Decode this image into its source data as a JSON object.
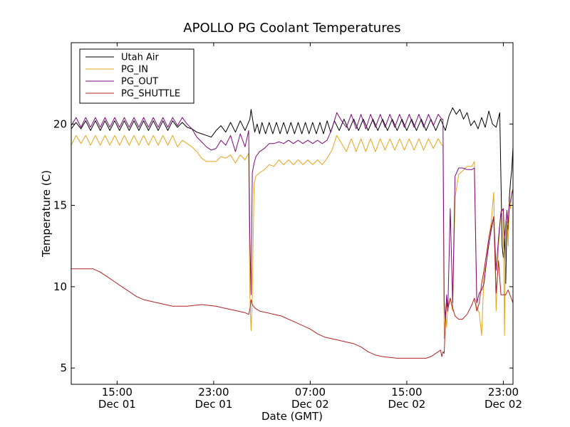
{
  "chart_data": {
    "type": "line",
    "title": "APOLLO PG Coolant Temperatures",
    "xlabel": "Date (GMT)",
    "ylabel": "Temperature (C)",
    "xlim": [
      11.2,
      47.8
    ],
    "ylim": [
      4,
      25
    ],
    "grid": false,
    "legend_position": "top-left",
    "x_unit": "hours since Dec 01 00:00 GMT",
    "x_ticks": [
      {
        "value": 15,
        "time": "15:00",
        "date": "Dec 01"
      },
      {
        "value": 23,
        "time": "23:00",
        "date": "Dec 01"
      },
      {
        "value": 31,
        "time": "07:00",
        "date": "Dec 02"
      },
      {
        "value": 39,
        "time": "15:00",
        "date": "Dec 02"
      },
      {
        "value": 47,
        "time": "23:00",
        "date": "Dec 02"
      }
    ],
    "y_ticks": [
      5,
      10,
      15,
      20
    ],
    "series": [
      {
        "name": "Utah Air",
        "color": "#000000",
        "x": [
          11.2,
          11.6,
          12.0,
          12.4,
          12.8,
          13.2,
          13.6,
          14.0,
          14.4,
          14.8,
          15.2,
          15.6,
          16.0,
          16.4,
          16.8,
          17.2,
          17.6,
          18.0,
          18.4,
          18.8,
          19.2,
          19.6,
          20.0,
          20.4,
          20.8,
          21.2,
          21.6,
          22.0,
          22.4,
          22.8,
          23.2,
          23.6,
          24.0,
          24.4,
          24.8,
          25.2,
          25.6,
          26.0,
          26.1,
          26.2,
          26.4,
          26.6,
          26.8,
          27.0,
          27.3,
          27.6,
          27.9,
          28.2,
          28.5,
          28.8,
          29.1,
          29.4,
          29.7,
          30.0,
          30.3,
          30.6,
          30.9,
          31.2,
          31.5,
          31.8,
          32.1,
          32.4,
          32.7,
          33.0,
          33.4,
          33.8,
          34.2,
          34.6,
          35.0,
          35.4,
          35.8,
          36.2,
          36.6,
          37.0,
          37.4,
          37.8,
          38.2,
          38.6,
          39.0,
          39.4,
          39.8,
          40.2,
          40.6,
          41.0,
          41.4,
          41.8,
          42.2,
          42.5,
          42.8,
          43.1,
          43.4,
          43.7,
          44.0,
          44.3,
          44.6,
          44.9,
          45.2,
          45.5,
          45.8,
          46.1,
          46.4,
          46.7,
          46.9,
          47.0,
          47.1,
          47.2,
          47.3,
          47.4,
          47.5,
          47.6,
          47.7,
          47.8
        ],
        "values": [
          19.7,
          20.1,
          19.7,
          20.2,
          19.6,
          20.2,
          19.6,
          20.2,
          19.6,
          20.2,
          19.6,
          20.2,
          19.6,
          20.2,
          19.6,
          20.2,
          19.6,
          20.2,
          19.6,
          20.2,
          19.6,
          20.2,
          19.8,
          20.1,
          19.8,
          19.7,
          19.5,
          19.4,
          19.3,
          19.2,
          19.6,
          19.9,
          19.5,
          20.1,
          19.5,
          20.2,
          19.6,
          20.3,
          20.9,
          20.4,
          19.5,
          20.0,
          19.4,
          20.1,
          19.4,
          20.1,
          19.4,
          20.1,
          19.4,
          20.1,
          19.4,
          20.1,
          19.4,
          20.1,
          19.4,
          20.1,
          19.4,
          20.1,
          19.4,
          20.1,
          19.4,
          20.2,
          19.5,
          20.2,
          19.6,
          20.3,
          19.6,
          20.3,
          19.6,
          20.3,
          19.6,
          20.3,
          19.6,
          20.3,
          19.6,
          20.3,
          19.6,
          20.3,
          19.6,
          20.3,
          19.6,
          20.3,
          19.6,
          20.3,
          19.6,
          20.3,
          19.6,
          20.5,
          21.0,
          20.6,
          20.9,
          20.3,
          20.7,
          19.9,
          20.2,
          19.7,
          20.4,
          19.8,
          20.8,
          20.0,
          19.8,
          20.7,
          12.5,
          11.8,
          13.0,
          10.2,
          14.0,
          13.5,
          15.5,
          16.5,
          17.2,
          18.6
        ]
      },
      {
        "name": "PG_IN",
        "color": "#e6a519",
        "x": [
          11.2,
          11.6,
          12.0,
          12.4,
          12.8,
          13.2,
          13.6,
          14.0,
          14.4,
          14.8,
          15.2,
          15.6,
          16.0,
          16.4,
          16.8,
          17.2,
          17.6,
          18.0,
          18.4,
          18.8,
          19.2,
          19.6,
          20.0,
          20.4,
          20.8,
          21.2,
          21.6,
          22.0,
          22.4,
          22.8,
          23.2,
          23.6,
          24.0,
          24.4,
          24.8,
          25.2,
          25.6,
          25.9,
          26.0,
          26.1,
          26.2,
          26.35,
          26.5,
          26.8,
          27.2,
          27.6,
          28.0,
          28.4,
          28.8,
          29.2,
          29.6,
          30.0,
          30.4,
          30.8,
          31.2,
          31.6,
          32.0,
          32.4,
          32.8,
          33.2,
          33.6,
          34.0,
          34.4,
          34.8,
          35.2,
          35.6,
          36.0,
          36.4,
          36.8,
          37.2,
          37.6,
          38.0,
          38.4,
          38.8,
          39.2,
          39.6,
          40.0,
          40.4,
          40.8,
          41.2,
          41.6,
          41.9,
          42.0,
          42.1,
          42.2,
          42.3,
          42.4,
          42.6,
          42.8,
          43.0,
          43.3,
          43.6,
          44.0,
          44.4,
          44.6,
          44.8,
          45.0,
          45.2,
          45.4,
          45.6,
          45.8,
          46.0,
          46.2,
          46.4,
          46.6,
          46.8,
          47.0,
          47.1,
          47.2,
          47.3,
          47.4,
          47.5,
          47.6,
          47.7,
          47.8
        ],
        "values": [
          18.7,
          19.3,
          18.8,
          19.3,
          18.7,
          19.3,
          18.7,
          19.3,
          18.7,
          19.3,
          18.7,
          19.3,
          18.7,
          19.3,
          18.7,
          19.3,
          18.7,
          19.3,
          18.7,
          19.3,
          18.7,
          19.3,
          18.6,
          19.0,
          18.8,
          18.6,
          18.3,
          17.9,
          17.7,
          17.7,
          17.7,
          18.0,
          17.9,
          18.1,
          17.6,
          18.1,
          17.8,
          18.2,
          9.5,
          7.3,
          9.3,
          16.3,
          16.8,
          17.0,
          17.2,
          17.5,
          17.4,
          17.8,
          17.5,
          17.8,
          17.5,
          17.8,
          17.5,
          17.8,
          17.5,
          17.8,
          17.5,
          17.9,
          18.4,
          19.3,
          18.8,
          18.3,
          19.1,
          18.3,
          19.1,
          18.3,
          19.1,
          18.3,
          19.1,
          18.4,
          19.1,
          18.4,
          19.1,
          18.4,
          19.1,
          18.4,
          19.1,
          18.4,
          19.1,
          18.5,
          19.1,
          18.7,
          18.7,
          6.8,
          8.5,
          7.5,
          8.8,
          9.3,
          8.5,
          15.5,
          16.9,
          17.1,
          17.4,
          17.4,
          17.7,
          8.7,
          8.4,
          7.0,
          10.8,
          11.5,
          13.0,
          14.0,
          15.8,
          8.5,
          12.5,
          14.5,
          14.8,
          7.0,
          14.0,
          14.5,
          12.5,
          15.2,
          14.8,
          15.8,
          16.0
        ]
      },
      {
        "name": "PG_OUT",
        "color": "#7b0a7b",
        "x": [
          11.2,
          11.6,
          12.0,
          12.4,
          12.8,
          13.2,
          13.6,
          14.0,
          14.4,
          14.8,
          15.2,
          15.6,
          16.0,
          16.4,
          16.8,
          17.2,
          17.6,
          18.0,
          18.4,
          18.8,
          19.2,
          19.6,
          20.0,
          20.4,
          20.8,
          21.2,
          21.6,
          22.0,
          22.4,
          22.8,
          23.2,
          23.6,
          24.0,
          24.4,
          24.8,
          25.2,
          25.6,
          25.9,
          26.0,
          26.1,
          26.2,
          26.35,
          26.5,
          26.8,
          27.2,
          27.6,
          28.0,
          28.4,
          28.8,
          29.2,
          29.6,
          30.0,
          30.4,
          30.8,
          31.2,
          31.6,
          32.0,
          32.4,
          32.8,
          33.2,
          33.6,
          34.0,
          34.4,
          34.8,
          35.2,
          35.6,
          36.0,
          36.4,
          36.8,
          37.2,
          37.6,
          38.0,
          38.4,
          38.8,
          39.2,
          39.6,
          40.0,
          40.4,
          40.8,
          41.2,
          41.6,
          41.9,
          42.0,
          42.1,
          42.2,
          42.3,
          42.4,
          42.6,
          42.8,
          43.0,
          43.3,
          43.6,
          44.0,
          44.4,
          44.6,
          44.8,
          45.0,
          45.2,
          45.4,
          45.6,
          45.8,
          46.0,
          46.2,
          46.4,
          46.6,
          46.8,
          47.0,
          47.1,
          47.2,
          47.3,
          47.4,
          47.5,
          47.6,
          47.7,
          47.8
        ],
        "values": [
          19.9,
          20.4,
          19.8,
          20.4,
          19.8,
          20.4,
          19.8,
          20.4,
          19.8,
          20.4,
          19.8,
          20.4,
          19.8,
          20.4,
          19.8,
          20.4,
          19.8,
          20.4,
          19.8,
          20.4,
          19.8,
          20.4,
          19.9,
          20.4,
          20.0,
          19.7,
          19.2,
          18.9,
          18.6,
          18.4,
          18.5,
          19.0,
          18.7,
          19.3,
          18.3,
          19.4,
          18.6,
          19.6,
          13.0,
          9.5,
          17.0,
          17.6,
          18.0,
          18.3,
          18.5,
          18.8,
          18.8,
          18.9,
          18.8,
          19.0,
          18.8,
          19.0,
          18.8,
          19.0,
          18.8,
          19.0,
          18.8,
          19.0,
          19.7,
          20.7,
          20.2,
          19.8,
          20.6,
          19.7,
          20.6,
          19.7,
          20.6,
          19.8,
          20.6,
          19.8,
          20.6,
          19.8,
          20.6,
          19.8,
          20.6,
          19.8,
          20.6,
          19.8,
          20.6,
          19.9,
          20.6,
          20.3,
          20.3,
          9.0,
          8.0,
          9.5,
          8.5,
          14.8,
          9.0,
          16.8,
          17.3,
          17.3,
          17.2,
          17.2,
          17.3,
          9.0,
          9.6,
          9.8,
          10.2,
          11.5,
          12.6,
          13.5,
          14.3,
          11.0,
          13.0,
          14.6,
          14.8,
          13.0,
          13.8,
          14.7,
          13.9,
          15.0,
          15.3,
          15.7,
          16.0
        ]
      },
      {
        "name": "PG_SHUTTLE",
        "color": "#b22222",
        "x": [
          11.2,
          11.8,
          12.4,
          13.0,
          13.6,
          14.2,
          14.8,
          15.4,
          16.0,
          16.6,
          17.2,
          17.8,
          18.4,
          19.0,
          19.6,
          20.2,
          20.8,
          21.4,
          22.0,
          22.6,
          23.2,
          23.8,
          24.4,
          25.0,
          25.6,
          25.9,
          26.0,
          26.1,
          26.2,
          26.4,
          26.8,
          27.4,
          28.0,
          28.6,
          29.2,
          29.8,
          30.4,
          31.0,
          31.6,
          32.2,
          32.8,
          33.4,
          34.0,
          34.6,
          35.2,
          35.8,
          36.4,
          37.0,
          37.6,
          38.2,
          38.8,
          39.4,
          40.0,
          40.6,
          41.0,
          41.2,
          41.4,
          41.6,
          41.8,
          41.9,
          42.0,
          42.1,
          42.2,
          42.3,
          42.4,
          42.6,
          42.8,
          43.0,
          43.3,
          43.6,
          44.0,
          44.4,
          44.6,
          44.8,
          45.0,
          45.2,
          45.4,
          45.6,
          45.8,
          46.0,
          46.2,
          46.4,
          46.6,
          46.8,
          47.0,
          47.2,
          47.4,
          47.6,
          47.8
        ],
        "values": [
          11.1,
          11.1,
          11.1,
          11.1,
          10.9,
          10.6,
          10.3,
          10.0,
          9.7,
          9.4,
          9.2,
          9.1,
          9.0,
          8.9,
          8.8,
          8.8,
          8.8,
          8.85,
          8.9,
          8.85,
          8.8,
          8.7,
          8.6,
          8.5,
          8.4,
          8.3,
          8.6,
          9.2,
          8.9,
          8.7,
          8.5,
          8.4,
          8.3,
          8.2,
          8.0,
          7.8,
          7.6,
          7.4,
          7.1,
          6.9,
          6.8,
          6.7,
          6.6,
          6.5,
          6.3,
          6.0,
          5.8,
          5.7,
          5.65,
          5.6,
          5.6,
          5.6,
          5.6,
          5.6,
          5.7,
          5.8,
          5.9,
          6.0,
          6.1,
          5.7,
          6.0,
          5.9,
          7.8,
          9.0,
          8.6,
          9.3,
          8.7,
          8.2,
          8.0,
          8.0,
          8.3,
          8.9,
          9.3,
          8.5,
          9.0,
          10.2,
          11.0,
          12.0,
          13.0,
          13.7,
          14.3,
          9.6,
          11.6,
          9.5,
          9.5,
          9.5,
          9.8,
          9.4,
          9.0
        ]
      }
    ]
  }
}
